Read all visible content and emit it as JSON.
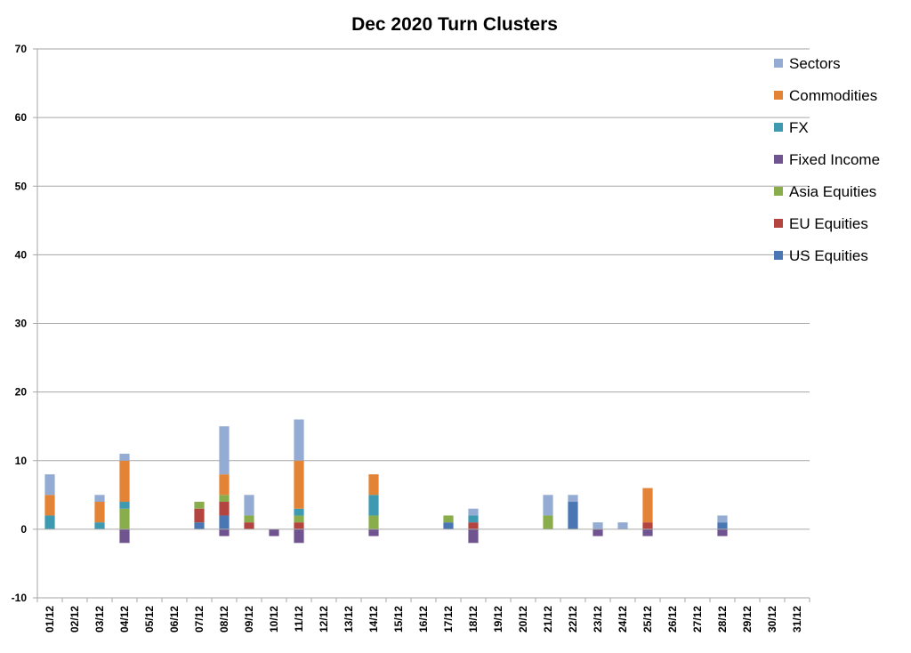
{
  "chart_data": {
    "type": "bar",
    "stacked": true,
    "title": "Dec 2020 Turn Clusters",
    "xlabel": "",
    "ylabel": "",
    "ylim": [
      -10,
      70
    ],
    "yticks": [
      -10,
      0,
      10,
      20,
      30,
      40,
      50,
      60,
      70
    ],
    "grid": true,
    "legend_position": "right",
    "categories": [
      "01/12",
      "02/12",
      "03/12",
      "04/12",
      "05/12",
      "06/12",
      "07/12",
      "08/12",
      "09/12",
      "10/12",
      "11/12",
      "12/12",
      "13/12",
      "14/12",
      "15/12",
      "16/12",
      "17/12",
      "18/12",
      "19/12",
      "20/12",
      "21/12",
      "22/12",
      "23/12",
      "24/12",
      "25/12",
      "26/12",
      "27/12",
      "28/12",
      "29/12",
      "30/12",
      "31/12"
    ],
    "series": [
      {
        "name": "US Equities",
        "color": "#4a76b3",
        "values": [
          0,
          0,
          0,
          0,
          0,
          0,
          1,
          2,
          0,
          0,
          0,
          0,
          0,
          0,
          0,
          0,
          1,
          0,
          0,
          0,
          0,
          4,
          0,
          0,
          0,
          0,
          0,
          1,
          0,
          0,
          0
        ]
      },
      {
        "name": "EU Equities",
        "color": "#b4443f",
        "values": [
          0,
          0,
          0,
          0,
          0,
          0,
          2,
          2,
          1,
          0,
          1,
          0,
          0,
          0,
          0,
          0,
          0,
          1,
          0,
          0,
          0,
          0,
          0,
          0,
          1,
          0,
          0,
          0,
          0,
          0,
          0
        ]
      },
      {
        "name": "Asia Equities",
        "color": "#8aad4c",
        "values": [
          0,
          0,
          0,
          3,
          0,
          0,
          1,
          1,
          1,
          0,
          1,
          0,
          0,
          2,
          0,
          0,
          1,
          0,
          0,
          0,
          2,
          0,
          0,
          0,
          0,
          0,
          0,
          0,
          0,
          0,
          0
        ]
      },
      {
        "name": "Fixed Income",
        "color": "#70548f",
        "values": [
          0,
          0,
          0,
          -2,
          0,
          0,
          0,
          -1,
          0,
          -1,
          -2,
          0,
          0,
          -1,
          0,
          0,
          0,
          -2,
          0,
          0,
          0,
          0,
          -1,
          0,
          -1,
          0,
          0,
          -1,
          0,
          0,
          0
        ]
      },
      {
        "name": "FX",
        "color": "#3d9ab0",
        "values": [
          2,
          0,
          1,
          1,
          0,
          0,
          0,
          0,
          0,
          0,
          1,
          0,
          0,
          3,
          0,
          0,
          0,
          1,
          0,
          0,
          0,
          0,
          0,
          0,
          0,
          0,
          0,
          0,
          0,
          0,
          0
        ]
      },
      {
        "name": "Commodities",
        "color": "#e28336",
        "values": [
          3,
          0,
          3,
          6,
          0,
          0,
          0,
          3,
          0,
          0,
          7,
          0,
          0,
          3,
          0,
          0,
          0,
          0,
          0,
          0,
          0,
          0,
          0,
          0,
          5,
          0,
          0,
          0,
          0,
          0,
          0
        ]
      },
      {
        "name": "Sectors",
        "color": "#94acd3",
        "values": [
          3,
          0,
          1,
          1,
          0,
          0,
          0,
          7,
          3,
          0,
          6,
          0,
          0,
          0,
          0,
          0,
          0,
          1,
          0,
          0,
          3,
          1,
          1,
          1,
          0,
          0,
          0,
          1,
          0,
          0,
          0
        ]
      }
    ],
    "legend_order": [
      "Sectors",
      "Commodities",
      "FX",
      "Fixed Income",
      "Asia Equities",
      "EU Equities",
      "US Equities"
    ]
  }
}
